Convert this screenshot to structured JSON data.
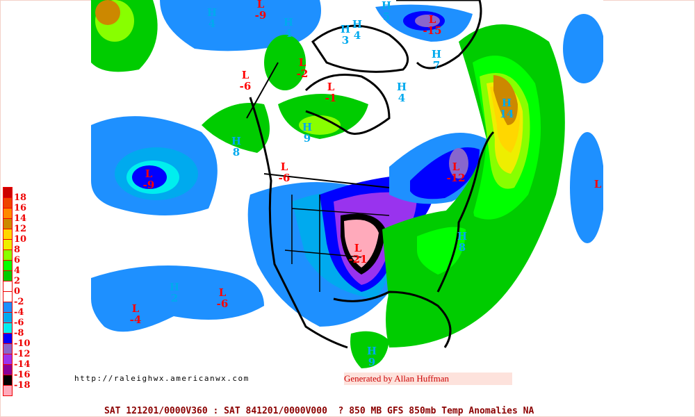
{
  "legend": {
    "colors": [
      "#cc0000",
      "#ee4400",
      "#ff8800",
      "#cc8800",
      "#ffd700",
      "#eeee00",
      "#88ff00",
      "#00ff00",
      "#00cc00",
      "#ffffff",
      "#ffffff",
      "#1e90ff",
      "#00aaee",
      "#00eeee",
      "#0000ff",
      "#8866cc",
      "#9933ee",
      "#880099",
      "#000000",
      "#ffaabb"
    ],
    "labels": [
      "18",
      "16",
      "14",
      "12",
      "10",
      "8",
      "6",
      "4",
      "2",
      "0",
      "-2",
      "-4",
      "-6",
      "-8",
      "-10",
      "-12",
      "-14",
      "-16",
      "-18"
    ]
  },
  "colors": {
    "high": "#00aaee",
    "low": "#ff0000",
    "coastline": "#000000"
  },
  "centers": [
    {
      "type": "H",
      "value": "4"
    },
    {
      "type": "L",
      "value": "-9"
    },
    {
      "type": "H",
      "value": "4"
    },
    {
      "type": "H",
      "value": "3"
    },
    {
      "type": "H",
      "value": "4"
    },
    {
      "type": "H",
      "value": "5"
    },
    {
      "type": "L",
      "value": "-15"
    },
    {
      "type": "H",
      "value": "7"
    },
    {
      "type": "L",
      "value": "-2"
    },
    {
      "type": "L",
      "value": "-6"
    },
    {
      "type": "L",
      "value": "-1"
    },
    {
      "type": "H",
      "value": "4"
    },
    {
      "type": "H",
      "value": "14"
    },
    {
      "type": "H",
      "value": "9"
    },
    {
      "type": "H",
      "value": "8"
    },
    {
      "type": "L",
      "value": "-9"
    },
    {
      "type": "L",
      "value": "-6"
    },
    {
      "type": "L",
      "value": "-12"
    },
    {
      "type": "L",
      "value": ""
    },
    {
      "type": "H",
      "value": "8"
    },
    {
      "type": "L",
      "value": "-21"
    },
    {
      "type": "H",
      "value": "2"
    },
    {
      "type": "L",
      "value": "-6"
    },
    {
      "type": "L",
      "value": "-4"
    },
    {
      "type": "H",
      "value": "9"
    }
  ],
  "url": "http://raleighwx.americanwx.com",
  "credit": "Generated by Allan Huffman",
  "footer": "SAT 121201/0000V360 : SAT 841201/0000V000  ? 850 MB GFS 850mb Temp Anomalies NA"
}
